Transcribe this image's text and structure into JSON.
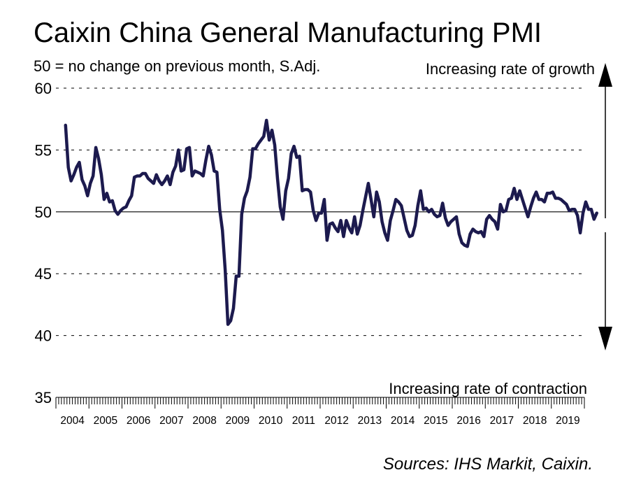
{
  "chart_data": {
    "type": "line",
    "title": "Caixin China General Manufacturing PMI",
    "subtitle": "50 = no change on previous month, S.Adj.",
    "growth_label": "Increasing rate of growth",
    "contraction_label": "Increasing rate of contraction",
    "source": "Sources: IHS Markit, Caixin.",
    "ylim": [
      35,
      60
    ],
    "yticks": [
      "60",
      "55",
      "50",
      "45",
      "40",
      "35"
    ],
    "ytick_values": [
      60,
      55,
      50,
      45,
      40,
      35
    ],
    "reference_line": 50,
    "grid": "dashed horizontal",
    "x_start": "2004-04",
    "years": [
      "2004",
      "2005",
      "2006",
      "2007",
      "2008",
      "2009",
      "2010",
      "2011",
      "2012",
      "2013",
      "2014",
      "2015",
      "2016",
      "2017",
      "2018",
      "2019"
    ],
    "series": [
      {
        "name": "Caixin China General Manufacturing PMI",
        "color": "#1c1a4e",
        "values": [
          57.0,
          53.6,
          52.5,
          53.0,
          53.6,
          54.0,
          52.6,
          52.1,
          51.3,
          52.3,
          52.9,
          55.2,
          54.3,
          53.0,
          51.0,
          51.5,
          50.8,
          50.9,
          50.1,
          49.8,
          50.1,
          50.3,
          50.4,
          50.9,
          51.3,
          52.8,
          52.9,
          52.9,
          53.1,
          53.1,
          52.7,
          52.5,
          52.3,
          53.0,
          52.5,
          52.2,
          52.5,
          52.9,
          52.2,
          53.2,
          53.7,
          55.0,
          53.3,
          53.4,
          55.1,
          55.2,
          52.9,
          53.3,
          53.2,
          53.1,
          52.9,
          54.2,
          55.3,
          54.6,
          53.3,
          53.2,
          50.2,
          48.5,
          45.3,
          40.9,
          41.2,
          42.2,
          44.8,
          44.8,
          49.8,
          51.1,
          51.7,
          52.8,
          55.1,
          55.1,
          55.5,
          55.8,
          56.1,
          57.4,
          55.8,
          56.6,
          55.4,
          52.7,
          50.4,
          49.4,
          51.7,
          52.7,
          54.7,
          55.3,
          54.4,
          54.5,
          51.7,
          51.8,
          51.8,
          51.6,
          50.1,
          49.3,
          49.9,
          49.9,
          51.0,
          47.7,
          49.0,
          49.1,
          48.7,
          48.4,
          49.3,
          48.0,
          49.3,
          48.7,
          48.3,
          49.6,
          48.2,
          48.9,
          50.1,
          51.2,
          52.3,
          51.0,
          49.6,
          51.6,
          50.8,
          49.2,
          48.3,
          47.7,
          49.3,
          50.1,
          51.0,
          50.8,
          50.5,
          49.5,
          48.5,
          48.0,
          48.1,
          48.9,
          50.5,
          51.7,
          50.2,
          50.3,
          50.0,
          50.2,
          49.8,
          49.6,
          49.7,
          50.7,
          49.5,
          48.9,
          49.2,
          49.4,
          49.6,
          48.2,
          47.5,
          47.3,
          47.2,
          48.2,
          48.6,
          48.4,
          48.3,
          48.4,
          48.0,
          49.4,
          49.7,
          49.4,
          49.2,
          48.6,
          50.6,
          50.0,
          50.1,
          51.0,
          51.1,
          51.9,
          51.0,
          51.7,
          51.0,
          50.3,
          49.6,
          50.4,
          51.1,
          51.6,
          51.0,
          51.0,
          50.8,
          51.5,
          51.5,
          51.6,
          51.1,
          51.1,
          51.0,
          50.8,
          50.6,
          50.1,
          50.2,
          50.2,
          49.7,
          48.3,
          49.9,
          50.8,
          50.2,
          50.2,
          49.4,
          49.9
        ]
      }
    ]
  }
}
